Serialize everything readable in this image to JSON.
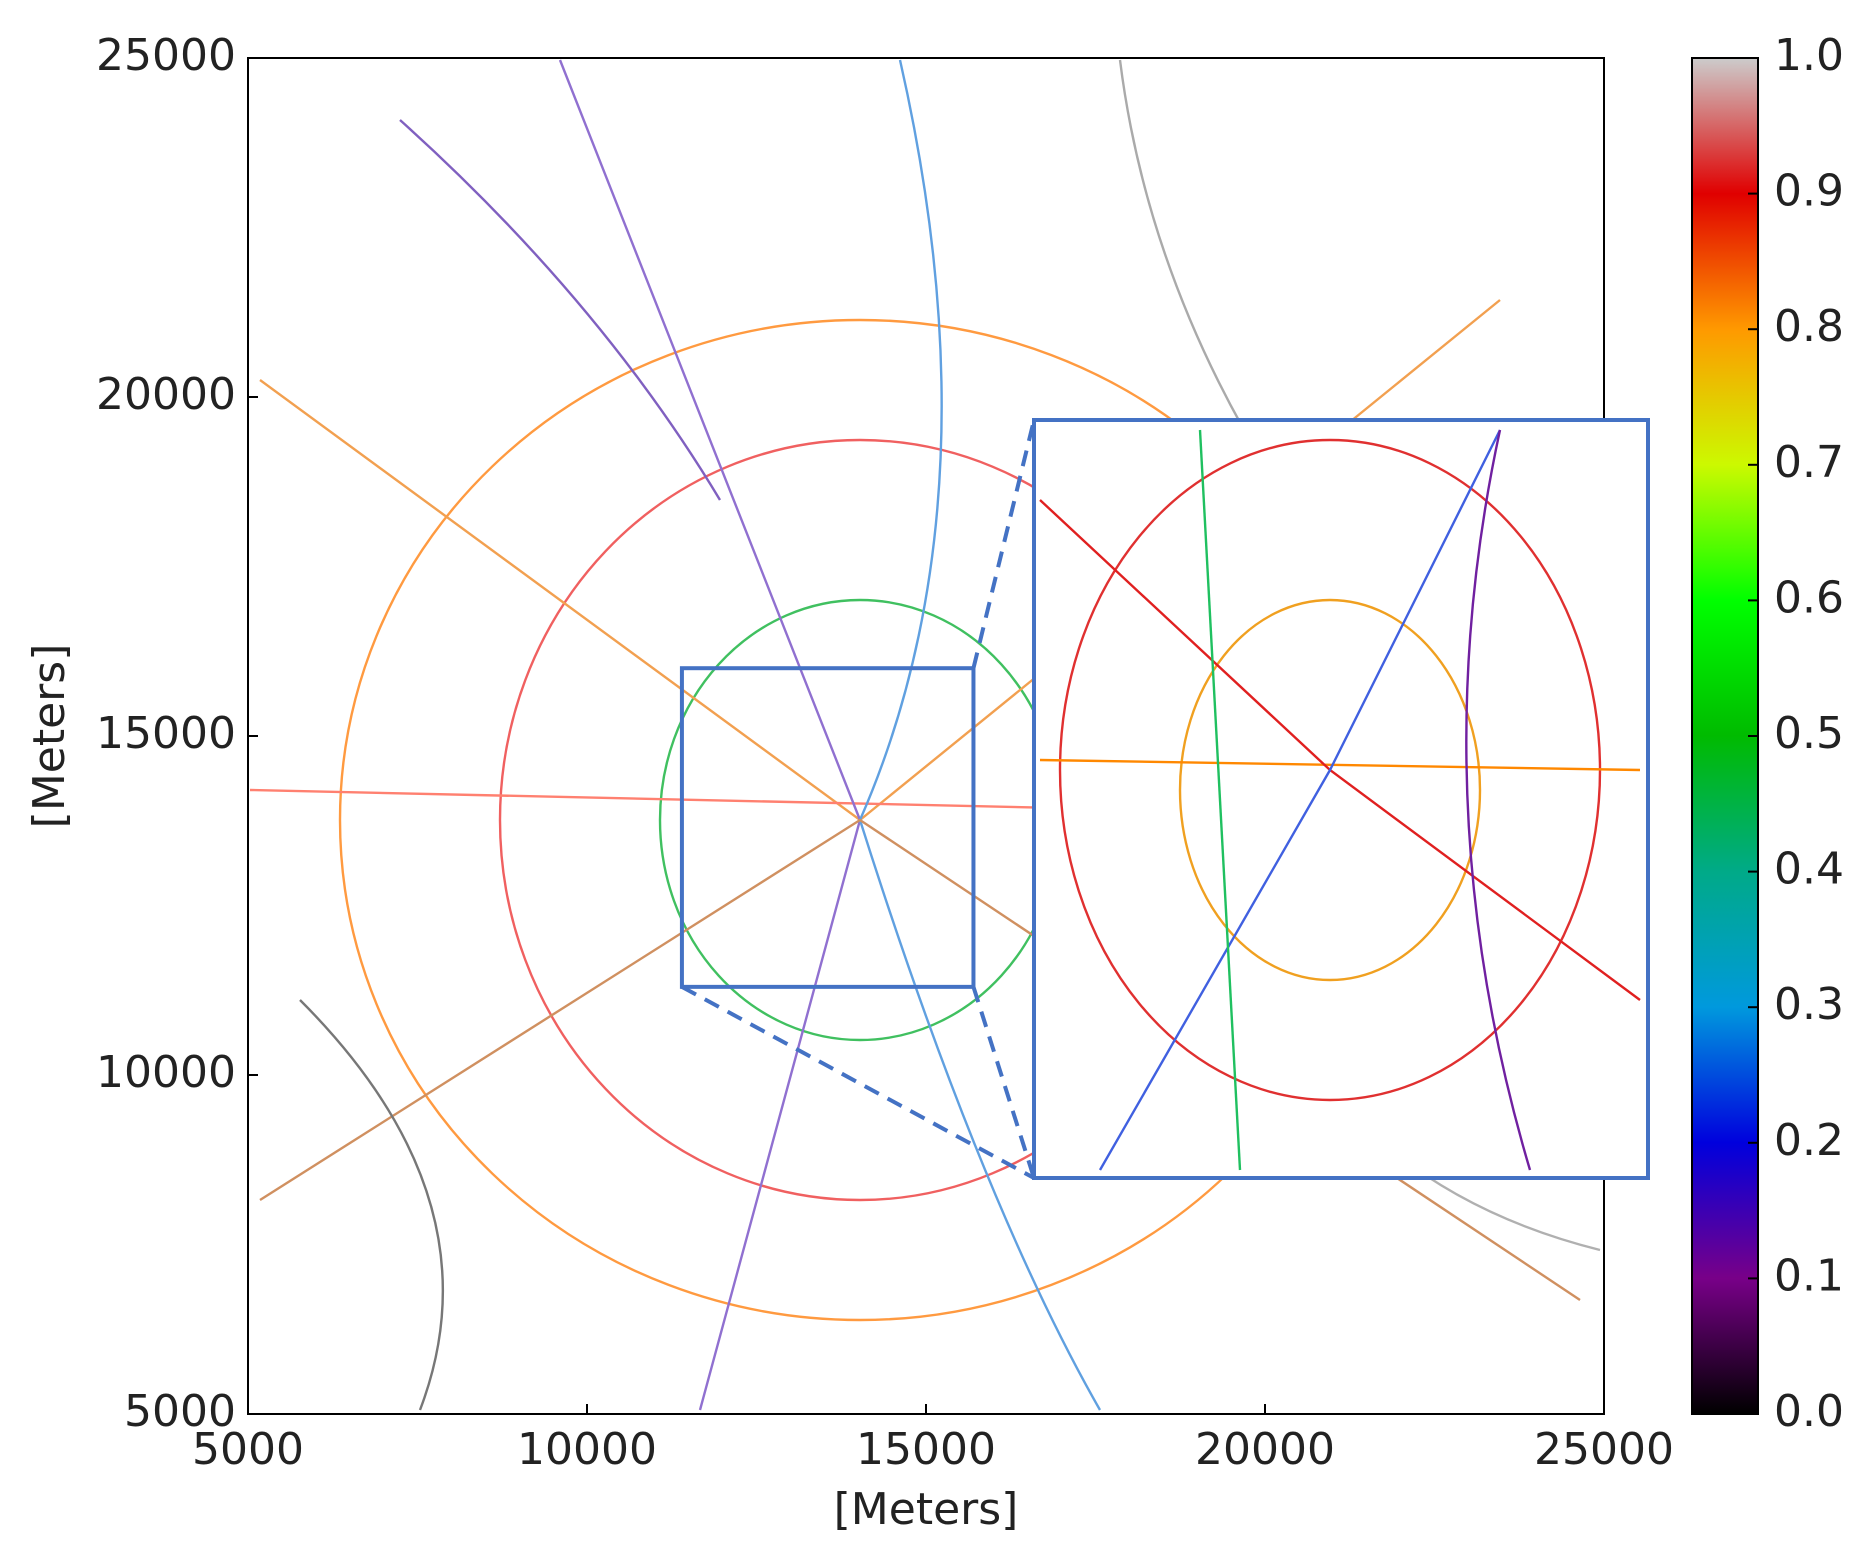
{
  "chart_data": {
    "type": "map",
    "xlabel": "[Meters]",
    "ylabel": "[Meters]",
    "xlim": [
      5000,
      25000
    ],
    "xticks": [
      5000,
      10000,
      15000,
      20000,
      25000
    ],
    "ylim": [
      5000,
      25000
    ],
    "yticks": [
      5000,
      10000,
      15000,
      20000,
      25000
    ],
    "zoom_region": {
      "xlim": [
        11400,
        15700
      ],
      "ylim": [
        11300,
        16000
      ]
    },
    "colorbar": {
      "lim": [
        0,
        1
      ],
      "ticks": [
        {
          "value": 0,
          "label": "0.0"
        },
        0.1,
        0.2,
        0.3,
        0.4,
        0.5,
        0.6,
        0.7,
        0.8,
        0.9,
        {
          "value": 1,
          "label": "1.0"
        }
      ]
    }
  }
}
